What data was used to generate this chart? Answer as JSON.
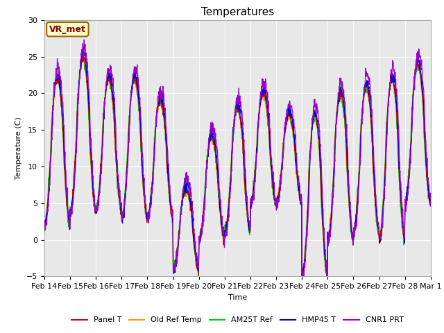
{
  "title": "Temperatures",
  "xlabel": "Time",
  "ylabel": "Temperature (C)",
  "ylim": [
    -5,
    30
  ],
  "tick_labels": [
    "Feb 14",
    "Feb 15",
    "Feb 16",
    "Feb 17",
    "Feb 18",
    "Feb 19",
    "Feb 20",
    "Feb 21",
    "Feb 22",
    "Feb 23",
    "Feb 24",
    "Feb 25",
    "Feb 26",
    "Feb 27",
    "Feb 28",
    "Mar 1"
  ],
  "series_colors": {
    "Panel T": "#cc0000",
    "Old Ref Temp": "#ff9900",
    "AM25T Ref": "#00cc00",
    "HMP45 T": "#0000cc",
    "CNR1 PRT": "#9900cc"
  },
  "annotation_text": "VR_met",
  "annotation_bbox_facecolor": "#ffffcc",
  "annotation_bbox_edgecolor": "#996600",
  "background_color": "#e8e8e8",
  "yticks": [
    -5,
    0,
    5,
    10,
    15,
    20,
    25,
    30
  ],
  "title_fontsize": 11,
  "axis_label_fontsize": 8,
  "tick_fontsize": 8,
  "daily_maxes": [
    22,
    25,
    22,
    22,
    19,
    7,
    14,
    18,
    20,
    17,
    17,
    20,
    21,
    22,
    24
  ],
  "daily_mins": [
    2,
    4,
    4,
    3,
    3,
    -4,
    0,
    1,
    5,
    5,
    -5,
    0,
    1,
    0,
    5
  ],
  "n_days": 15,
  "pts_per_day": 96,
  "noise_seed": 42
}
